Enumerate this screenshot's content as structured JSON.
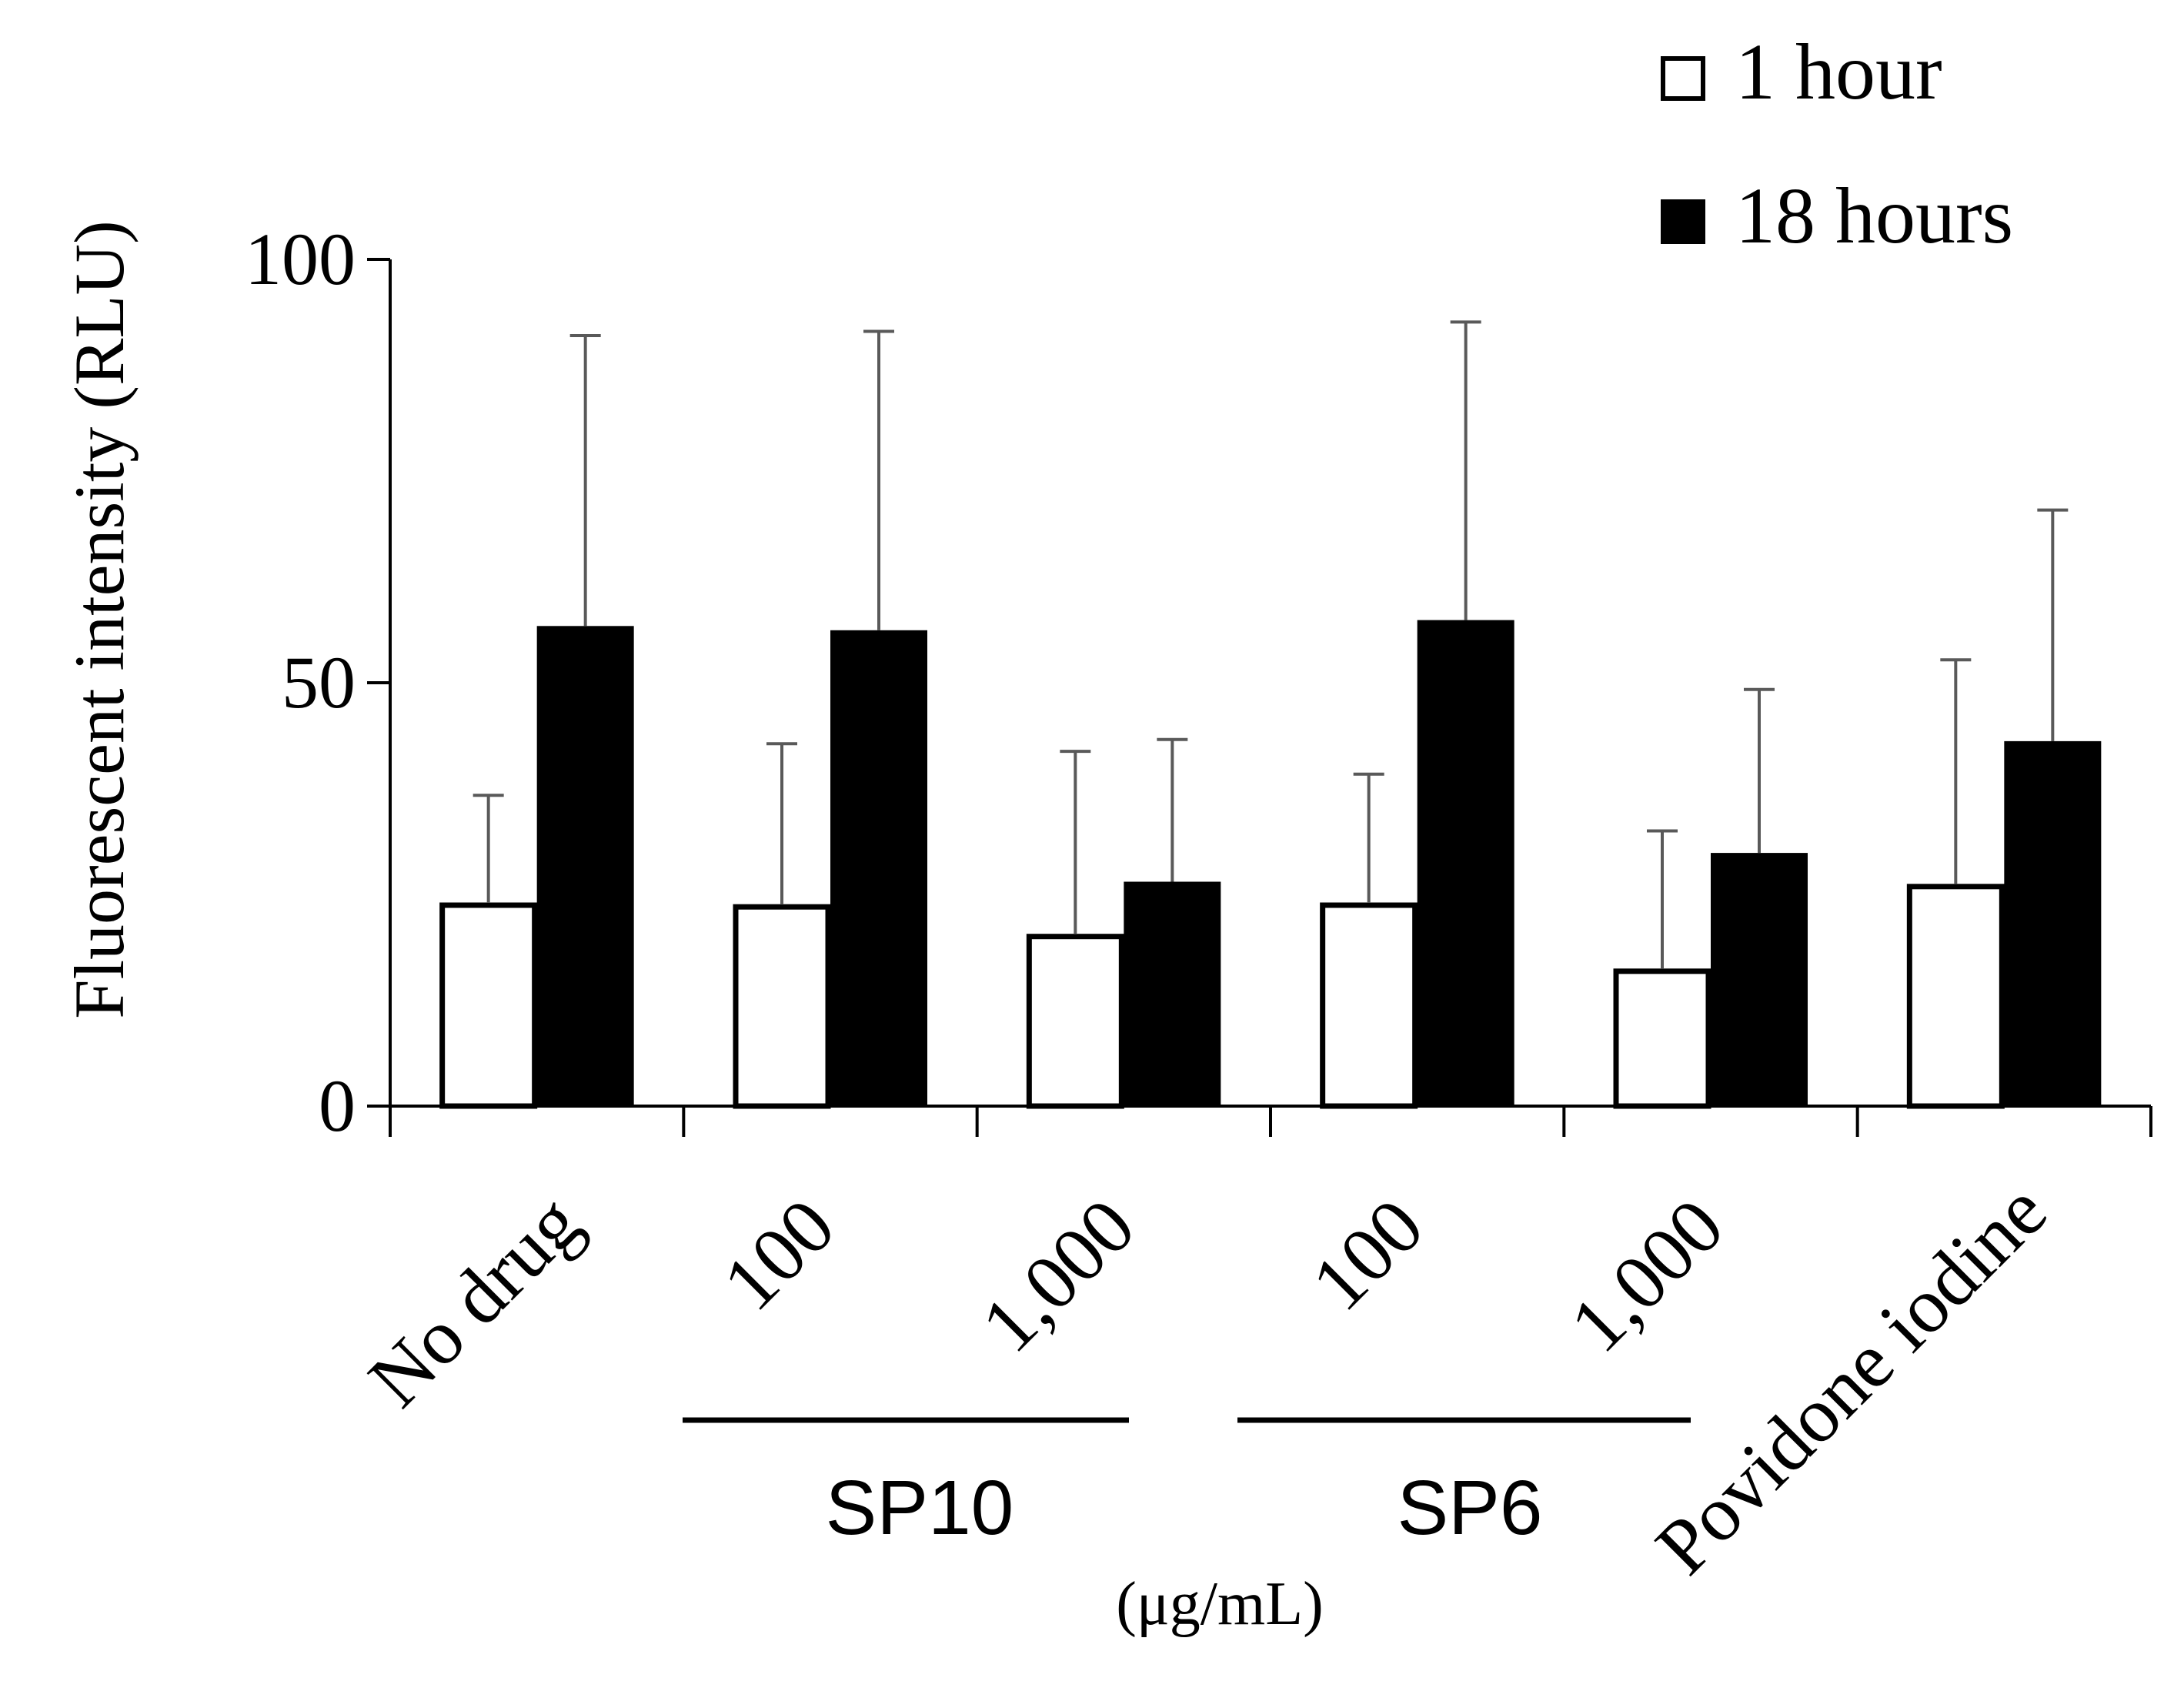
{
  "chart_data": {
    "type": "bar",
    "ylabel": "Fluorescent intensity (RLU)",
    "ylim": [
      0,
      100
    ],
    "yticks": [
      "0",
      "50",
      "100"
    ],
    "categories": [
      "No drug",
      "100",
      "1,000",
      "100",
      "1,000",
      "Povidone iodine"
    ],
    "groups": [
      {
        "label": "SP10",
        "categories": [
          1,
          2
        ]
      },
      {
        "label": "SP6",
        "categories": [
          3,
          4
        ]
      }
    ],
    "unit_note": "(μg/mL)",
    "legend_position": "top-right",
    "series": [
      {
        "name": "1 hour",
        "fill": "#ffffff",
        "stroke": "#000000",
        "values": [
          24,
          23.8,
          20.3,
          24,
          16.2,
          26.2
        ],
        "errors": [
          12.7,
          19,
          21.6,
          15.2,
          16.3,
          26.5
        ]
      },
      {
        "name": "18 hours",
        "fill": "#000000",
        "stroke": "#000000",
        "values": [
          56.7,
          56.2,
          26.5,
          57.4,
          29.9,
          43.1
        ],
        "errors": [
          34.3,
          35.3,
          16.8,
          35.2,
          19.3,
          27.3
        ]
      }
    ],
    "colors": {
      "axis": "#000000",
      "error_bar": "#595959"
    }
  }
}
